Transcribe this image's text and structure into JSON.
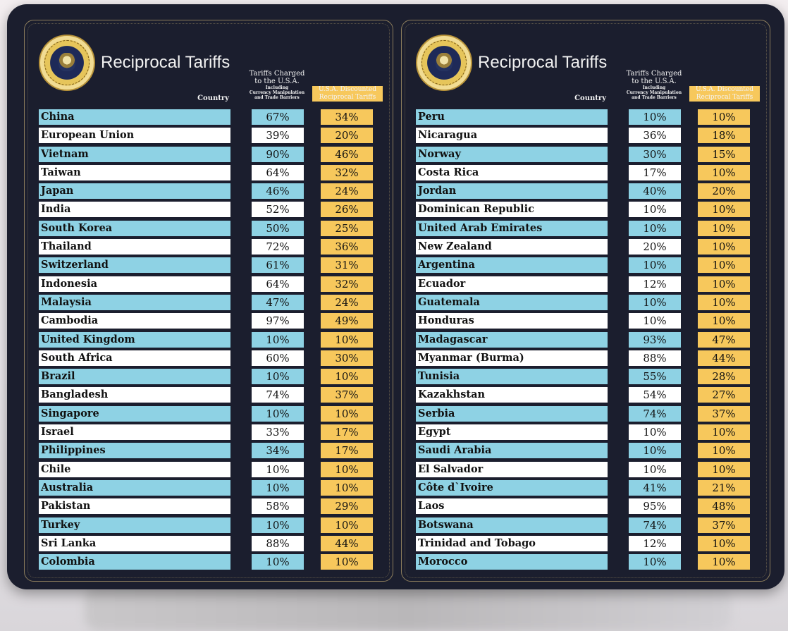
{
  "title": "Reciprocal Tariffs",
  "headers": {
    "country": "Country",
    "charged_line1": "Tariffs Charged",
    "charged_line2": "to the U.S.A.",
    "charged_sub1": "Including",
    "charged_sub2": "Currency Manipulation",
    "charged_sub3": "and Trade Barriers",
    "discounted_line1": "U.S.A. Discounted",
    "discounted_line2": "Reciprocal Tariffs"
  },
  "colors": {
    "board": "#1b1e2e",
    "row_blue": "#8ed2e4",
    "row_white": "#ffffff",
    "discounted": "#f7c85c"
  },
  "left_rows": [
    {
      "country": "China",
      "charged": "67%",
      "discounted": "34%"
    },
    {
      "country": "European Union",
      "charged": "39%",
      "discounted": "20%"
    },
    {
      "country": "Vietnam",
      "charged": "90%",
      "discounted": "46%"
    },
    {
      "country": "Taiwan",
      "charged": "64%",
      "discounted": "32%"
    },
    {
      "country": "Japan",
      "charged": "46%",
      "discounted": "24%"
    },
    {
      "country": "India",
      "charged": "52%",
      "discounted": "26%"
    },
    {
      "country": "South Korea",
      "charged": "50%",
      "discounted": "25%"
    },
    {
      "country": "Thailand",
      "charged": "72%",
      "discounted": "36%"
    },
    {
      "country": "Switzerland",
      "charged": "61%",
      "discounted": "31%"
    },
    {
      "country": "Indonesia",
      "charged": "64%",
      "discounted": "32%"
    },
    {
      "country": "Malaysia",
      "charged": "47%",
      "discounted": "24%"
    },
    {
      "country": "Cambodia",
      "charged": "97%",
      "discounted": "49%"
    },
    {
      "country": "United Kingdom",
      "charged": "10%",
      "discounted": "10%"
    },
    {
      "country": "South Africa",
      "charged": "60%",
      "discounted": "30%"
    },
    {
      "country": "Brazil",
      "charged": "10%",
      "discounted": "10%"
    },
    {
      "country": "Bangladesh",
      "charged": "74%",
      "discounted": "37%"
    },
    {
      "country": "Singapore",
      "charged": "10%",
      "discounted": "10%"
    },
    {
      "country": "Israel",
      "charged": "33%",
      "discounted": "17%"
    },
    {
      "country": "Philippines",
      "charged": "34%",
      "discounted": "17%"
    },
    {
      "country": "Chile",
      "charged": "10%",
      "discounted": "10%"
    },
    {
      "country": "Australia",
      "charged": "10%",
      "discounted": "10%"
    },
    {
      "country": "Pakistan",
      "charged": "58%",
      "discounted": "29%"
    },
    {
      "country": "Turkey",
      "charged": "10%",
      "discounted": "10%"
    },
    {
      "country": "Sri Lanka",
      "charged": "88%",
      "discounted": "44%"
    },
    {
      "country": "Colombia",
      "charged": "10%",
      "discounted": "10%"
    }
  ],
  "right_rows": [
    {
      "country": "Peru",
      "charged": "10%",
      "discounted": "10%"
    },
    {
      "country": "Nicaragua",
      "charged": "36%",
      "discounted": "18%"
    },
    {
      "country": "Norway",
      "charged": "30%",
      "discounted": "15%"
    },
    {
      "country": "Costa Rica",
      "charged": "17%",
      "discounted": "10%"
    },
    {
      "country": "Jordan",
      "charged": "40%",
      "discounted": "20%"
    },
    {
      "country": "Dominican Republic",
      "charged": "10%",
      "discounted": "10%"
    },
    {
      "country": "United Arab Emirates",
      "charged": "10%",
      "discounted": "10%"
    },
    {
      "country": "New Zealand",
      "charged": "20%",
      "discounted": "10%"
    },
    {
      "country": "Argentina",
      "charged": "10%",
      "discounted": "10%"
    },
    {
      "country": "Ecuador",
      "charged": "12%",
      "discounted": "10%"
    },
    {
      "country": "Guatemala",
      "charged": "10%",
      "discounted": "10%"
    },
    {
      "country": "Honduras",
      "charged": "10%",
      "discounted": "10%"
    },
    {
      "country": "Madagascar",
      "charged": "93%",
      "discounted": "47%"
    },
    {
      "country": "Myanmar (Burma)",
      "charged": "88%",
      "discounted": "44%"
    },
    {
      "country": "Tunisia",
      "charged": "55%",
      "discounted": "28%"
    },
    {
      "country": "Kazakhstan",
      "charged": "54%",
      "discounted": "27%"
    },
    {
      "country": "Serbia",
      "charged": "74%",
      "discounted": "37%"
    },
    {
      "country": "Egypt",
      "charged": "10%",
      "discounted": "10%"
    },
    {
      "country": "Saudi Arabia",
      "charged": "10%",
      "discounted": "10%"
    },
    {
      "country": "El Salvador",
      "charged": "10%",
      "discounted": "10%"
    },
    {
      "country": "Côte d`Ivoire",
      "charged": "41%",
      "discounted": "21%"
    },
    {
      "country": "Laos",
      "charged": "95%",
      "discounted": "48%"
    },
    {
      "country": "Botswana",
      "charged": "74%",
      "discounted": "37%"
    },
    {
      "country": "Trinidad and Tobago",
      "charged": "12%",
      "discounted": "10%"
    },
    {
      "country": "Morocco",
      "charged": "10%",
      "discounted": "10%"
    }
  ]
}
